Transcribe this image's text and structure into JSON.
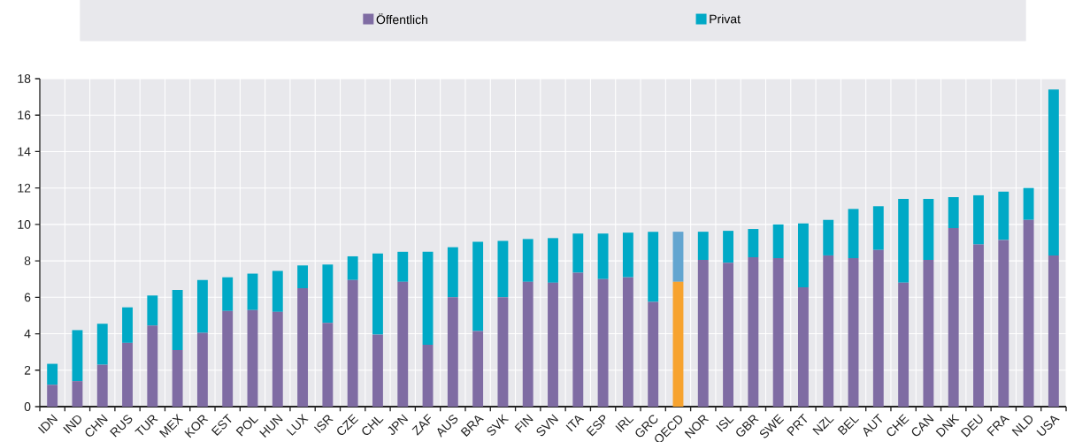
{
  "chart_data": {
    "type": "bar",
    "stacked": true,
    "categories": [
      "IDN",
      "IND",
      "CHN",
      "RUS",
      "TUR",
      "MEX",
      "KOR",
      "EST",
      "POL",
      "HUN",
      "LUX",
      "ISR",
      "CZE",
      "CHL",
      "JPN",
      "ZAF",
      "AUS",
      "BRA",
      "SVK",
      "FIN",
      "SVN",
      "ITA",
      "ESP",
      "IRL",
      "GRC",
      "OECD",
      "NOR",
      "ISL",
      "GBR",
      "SWE",
      "PRT",
      "NZL",
      "BEL",
      "AUT",
      "CHE",
      "CAN",
      "DNK",
      "DEU",
      "FRA",
      "NLD",
      "USA"
    ],
    "series": [
      {
        "name": "Öffentlich",
        "color": "#7f6ca3",
        "colors": [
          "#7f6ca3",
          "#7f6ca3",
          "#7f6ca3",
          "#7f6ca3",
          "#7f6ca3",
          "#7f6ca3",
          "#7f6ca3",
          "#7f6ca3",
          "#7f6ca3",
          "#7f6ca3",
          "#7f6ca3",
          "#7f6ca3",
          "#7f6ca3",
          "#7f6ca3",
          "#7f6ca3",
          "#7f6ca3",
          "#7f6ca3",
          "#7f6ca3",
          "#7f6ca3",
          "#7f6ca3",
          "#7f6ca3",
          "#7f6ca3",
          "#7f6ca3",
          "#7f6ca3",
          "#7f6ca3",
          "#f7a32f",
          "#7f6ca3",
          "#7f6ca3",
          "#7f6ca3",
          "#7f6ca3",
          "#7f6ca3",
          "#7f6ca3",
          "#7f6ca3",
          "#7f6ca3",
          "#7f6ca3",
          "#7f6ca3",
          "#7f6ca3",
          "#7f6ca3",
          "#7f6ca3",
          "#7f6ca3",
          "#7f6ca3"
        ],
        "values": [
          1.2,
          1.4,
          2.3,
          3.5,
          4.45,
          3.1,
          4.05,
          5.25,
          5.3,
          5.2,
          6.5,
          4.6,
          6.95,
          3.95,
          6.85,
          3.4,
          6.0,
          4.15,
          6.0,
          6.85,
          6.8,
          7.35,
          7.0,
          7.1,
          5.75,
          6.85,
          8.05,
          7.9,
          8.2,
          8.15,
          6.55,
          8.3,
          8.15,
          8.6,
          6.8,
          8.05,
          9.8,
          8.9,
          9.15,
          10.25,
          8.3
        ]
      },
      {
        "name": "Privat",
        "color": "#00a9c6",
        "colors": [
          "#00a9c6",
          "#00a9c6",
          "#00a9c6",
          "#00a9c6",
          "#00a9c6",
          "#00a9c6",
          "#00a9c6",
          "#00a9c6",
          "#00a9c6",
          "#00a9c6",
          "#00a9c6",
          "#00a9c6",
          "#00a9c6",
          "#00a9c6",
          "#00a9c6",
          "#00a9c6",
          "#00a9c6",
          "#00a9c6",
          "#00a9c6",
          "#00a9c6",
          "#00a9c6",
          "#00a9c6",
          "#00a9c6",
          "#00a9c6",
          "#00a9c6",
          "#63a5d0",
          "#00a9c6",
          "#00a9c6",
          "#00a9c6",
          "#00a9c6",
          "#00a9c6",
          "#00a9c6",
          "#00a9c6",
          "#00a9c6",
          "#00a9c6",
          "#00a9c6",
          "#00a9c6",
          "#00a9c6",
          "#00a9c6",
          "#00a9c6",
          "#00a9c6"
        ],
        "values": [
          1.15,
          2.8,
          2.25,
          1.95,
          1.65,
          3.3,
          2.9,
          1.85,
          2.0,
          2.25,
          1.25,
          3.2,
          1.3,
          4.45,
          1.65,
          5.1,
          2.75,
          4.9,
          3.1,
          2.35,
          2.45,
          2.15,
          2.5,
          2.45,
          3.85,
          2.75,
          1.55,
          1.75,
          1.55,
          1.85,
          3.5,
          1.95,
          2.7,
          2.4,
          4.6,
          3.35,
          1.7,
          2.7,
          2.65,
          1.75,
          9.1
        ]
      }
    ],
    "ylim": [
      0,
      18
    ],
    "yticks": [
      0,
      2,
      4,
      6,
      8,
      10,
      12,
      14,
      16,
      18
    ],
    "grid": true,
    "legend": "top"
  }
}
